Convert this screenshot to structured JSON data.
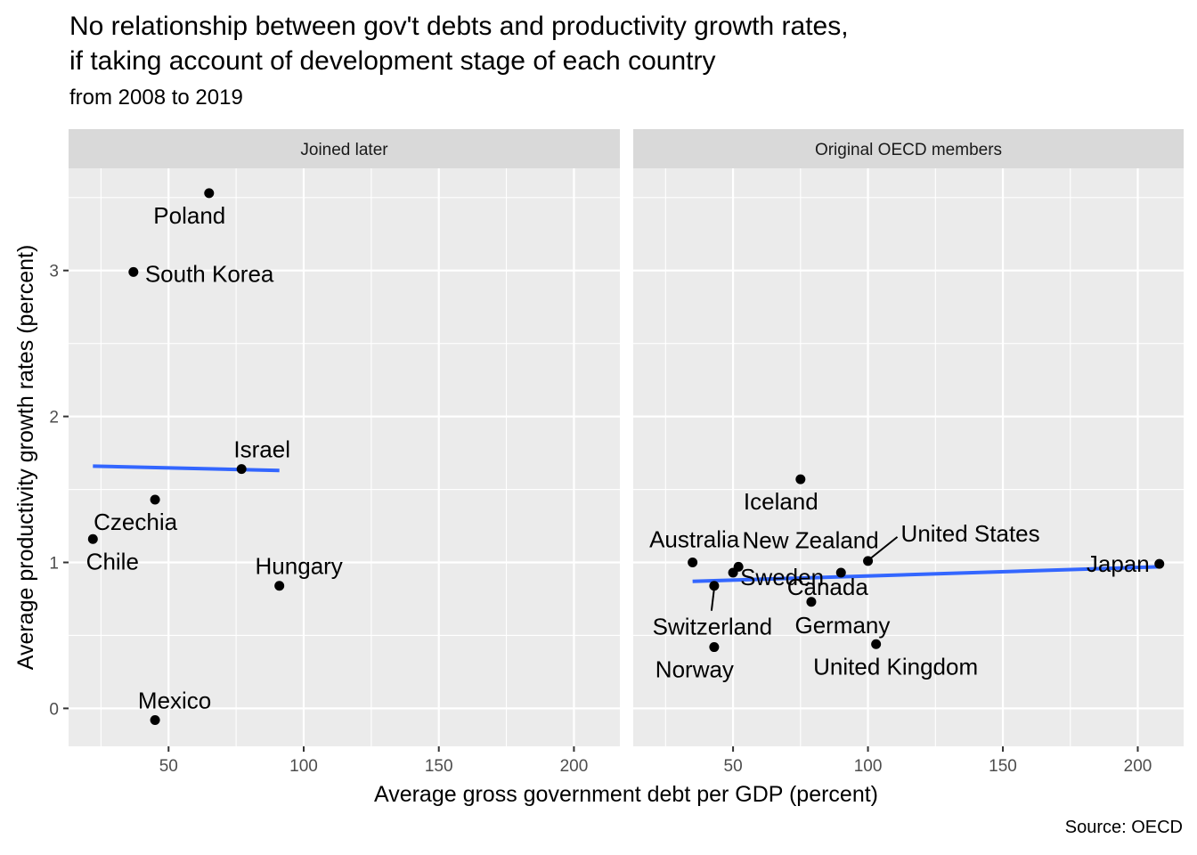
{
  "chart_data": {
    "type": "scatter",
    "title_line1": "No relationship between gov't debts and productivity growth rates,",
    "title_line2": "if taking account of development stage of each country",
    "subtitle": "from 2008 to 2019",
    "xlabel": "Average gross government debt per GDP (percent)",
    "ylabel": "Average productivity growth rates (percent)",
    "caption": "Source: OECD",
    "xlim": [
      13,
      217
    ],
    "ylim": [
      -0.26,
      3.7
    ],
    "x_ticks": [
      50,
      100,
      150,
      200
    ],
    "y_ticks": [
      0,
      1,
      2,
      3
    ],
    "grid": true,
    "trend_color": "#3366FF",
    "point_color": "#000000",
    "panels": [
      {
        "name": "Joined later",
        "points": [
          {
            "label": "Poland",
            "x": 65,
            "y": 3.53
          },
          {
            "label": "South Korea",
            "x": 37,
            "y": 2.99
          },
          {
            "label": "Israel",
            "x": 77,
            "y": 1.64
          },
          {
            "label": "Czechia",
            "x": 45,
            "y": 1.43
          },
          {
            "label": "Chile",
            "x": 22,
            "y": 1.16
          },
          {
            "label": "Hungary",
            "x": 91,
            "y": 0.84
          },
          {
            "label": "Mexico",
            "x": 45,
            "y": -0.08
          }
        ],
        "trend": {
          "x": [
            22,
            91
          ],
          "y": [
            1.66,
            1.63
          ]
        }
      },
      {
        "name": "Original OECD members",
        "points": [
          {
            "label": "Iceland",
            "x": 75,
            "y": 1.57
          },
          {
            "label": "United States",
            "x": 100,
            "y": 1.01
          },
          {
            "label": "Australia",
            "x": 35,
            "y": 1.0
          },
          {
            "label": "New Zealand",
            "x": 52,
            "y": 0.97
          },
          {
            "label": "Japan",
            "x": 208,
            "y": 0.99
          },
          {
            "label": "Canada",
            "x": 90,
            "y": 0.93
          },
          {
            "label": "Sweden",
            "x": 50,
            "y": 0.93
          },
          {
            "label": "Switzerland",
            "x": 43,
            "y": 0.84
          },
          {
            "label": "Germany",
            "x": 79,
            "y": 0.73
          },
          {
            "label": "United Kingdom",
            "x": 103,
            "y": 0.44
          },
          {
            "label": "Norway",
            "x": 43,
            "y": 0.42
          }
        ],
        "trend": {
          "x": [
            35,
            208
          ],
          "y": [
            0.87,
            0.97
          ]
        }
      }
    ]
  }
}
